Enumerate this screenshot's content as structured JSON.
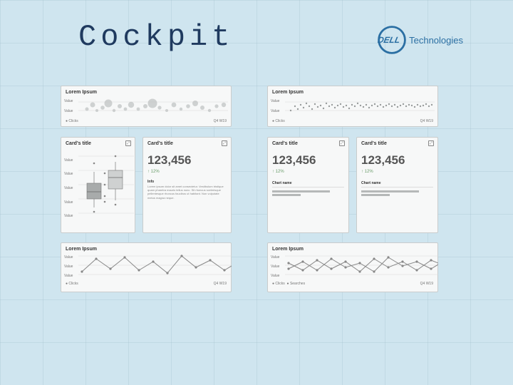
{
  "page": {
    "title": "Cockpit",
    "brand_text": "Technologies",
    "background_color": "#cfe5ef"
  },
  "card_common": {
    "title_label": "Card's title",
    "lorem_title": "Lorem Ipsum",
    "ylabel": "Value",
    "legend_clicks": "● Clicks",
    "legend_searches": "● Searches",
    "x_right": "Q4 W19"
  },
  "bubble1": {
    "type": "bubble",
    "points": [
      [
        12,
        20,
        2.5
      ],
      [
        20,
        14,
        3.5
      ],
      [
        26,
        22,
        2
      ],
      [
        34,
        18,
        2.8
      ],
      [
        42,
        12,
        5.5
      ],
      [
        50,
        22,
        2.2
      ],
      [
        58,
        16,
        3
      ],
      [
        66,
        20,
        2.4
      ],
      [
        74,
        14,
        4.2
      ],
      [
        84,
        20,
        2.4
      ],
      [
        94,
        16,
        3
      ],
      [
        104,
        12,
        6.5
      ],
      [
        114,
        18,
        2.6
      ],
      [
        124,
        22,
        2
      ],
      [
        134,
        14,
        3.4
      ],
      [
        144,
        20,
        2.2
      ],
      [
        154,
        16,
        2.8
      ],
      [
        164,
        12,
        4.0
      ],
      [
        174,
        18,
        3
      ],
      [
        184,
        22,
        2.2
      ],
      [
        194,
        16,
        2.6
      ],
      [
        204,
        14,
        3.2
      ]
    ],
    "fill": "#b8bcbc"
  },
  "bubble2": {
    "type": "scatter",
    "points": [
      [
        8,
        22,
        1.2
      ],
      [
        14,
        16,
        1.2
      ],
      [
        18,
        20,
        1.2
      ],
      [
        22,
        14,
        1.2
      ],
      [
        26,
        18,
        1.2
      ],
      [
        30,
        12,
        1.2
      ],
      [
        34,
        16,
        1.2
      ],
      [
        38,
        20,
        1.2
      ],
      [
        42,
        13,
        1.2
      ],
      [
        46,
        17,
        1.2
      ],
      [
        50,
        15,
        1.2
      ],
      [
        54,
        19,
        1.2
      ],
      [
        58,
        12,
        1.2
      ],
      [
        62,
        16,
        1.2
      ],
      [
        66,
        14,
        1.2
      ],
      [
        70,
        18,
        1.2
      ],
      [
        74,
        15,
        1.2
      ],
      [
        78,
        13,
        1.2
      ],
      [
        82,
        17,
        1.2
      ],
      [
        86,
        15,
        1.2
      ],
      [
        90,
        19,
        1.2
      ],
      [
        94,
        14,
        1.2
      ],
      [
        98,
        16,
        1.2
      ],
      [
        102,
        12,
        1.2
      ],
      [
        106,
        15,
        1.2
      ],
      [
        110,
        17,
        1.2
      ],
      [
        114,
        14,
        1.2
      ],
      [
        118,
        18,
        1.2
      ],
      [
        122,
        15,
        1.2
      ],
      [
        126,
        13,
        1.2
      ],
      [
        130,
        16,
        1.2
      ],
      [
        134,
        14,
        1.2
      ],
      [
        138,
        17,
        1.2
      ],
      [
        142,
        15,
        1.2
      ],
      [
        146,
        13,
        1.2
      ],
      [
        150,
        16,
        1.2
      ],
      [
        154,
        14,
        1.2
      ],
      [
        158,
        17,
        1.2
      ],
      [
        162,
        15,
        1.2
      ],
      [
        166,
        13,
        1.2
      ],
      [
        170,
        16,
        1.2
      ],
      [
        174,
        14,
        1.2
      ],
      [
        178,
        15,
        1.2
      ],
      [
        182,
        17,
        1.2
      ],
      [
        186,
        14,
        1.2
      ],
      [
        190,
        16,
        1.2
      ],
      [
        194,
        15,
        1.2
      ],
      [
        198,
        13,
        1.2
      ],
      [
        202,
        16,
        1.2
      ],
      [
        206,
        14,
        1.2
      ]
    ],
    "fill": "#999c9c"
  },
  "boxplot": {
    "type": "boxplot",
    "boxes": [
      {
        "x": 22,
        "q1": 48,
        "q3": 70,
        "med": 60,
        "wlo": 82,
        "whi": 32,
        "fill": "#a8abab"
      },
      {
        "x": 52,
        "q1": 30,
        "q3": 56,
        "med": 40,
        "wlo": 72,
        "whi": 18,
        "fill": "#cfd1d1"
      }
    ],
    "outliers": [
      [
        22,
        20
      ],
      [
        22,
        88
      ],
      [
        52,
        10
      ],
      [
        52,
        78
      ],
      [
        37,
        50
      ],
      [
        37,
        34
      ],
      [
        37,
        66
      ],
      [
        37,
        74
      ]
    ]
  },
  "kpi": {
    "value": "123,456",
    "delta": "↑ 12%",
    "info_h": "Info",
    "info_text": "Lorem ipsum dolor sit amet consectetur. Vestibulum tristique quam pharetra mauris tellus nunc. Sit rhoncus scelerisque pellentesque rhoncus faucibus ut habitant. Non vulputate metus magna neque.",
    "chart_name": "Chart name"
  },
  "bars_small": {
    "values": [
      0.8,
      0.4
    ]
  },
  "line1": {
    "type": "line",
    "points": [
      [
        5,
        28
      ],
      [
        25,
        10
      ],
      [
        45,
        24
      ],
      [
        65,
        8
      ],
      [
        85,
        26
      ],
      [
        105,
        14
      ],
      [
        125,
        30
      ],
      [
        145,
        6
      ],
      [
        165,
        22
      ],
      [
        185,
        12
      ],
      [
        205,
        26
      ],
      [
        225,
        14
      ]
    ]
  },
  "line2": {
    "type": "line",
    "series": [
      [
        [
          5,
          24
        ],
        [
          25,
          14
        ],
        [
          45,
          26
        ],
        [
          65,
          10
        ],
        [
          85,
          22
        ],
        [
          105,
          16
        ],
        [
          125,
          28
        ],
        [
          145,
          8
        ],
        [
          165,
          20
        ],
        [
          185,
          14
        ],
        [
          205,
          24
        ],
        [
          225,
          12
        ]
      ],
      [
        [
          5,
          16
        ],
        [
          25,
          26
        ],
        [
          45,
          12
        ],
        [
          65,
          24
        ],
        [
          85,
          14
        ],
        [
          105,
          28
        ],
        [
          125,
          10
        ],
        [
          145,
          22
        ],
        [
          165,
          14
        ],
        [
          185,
          26
        ],
        [
          205,
          12
        ],
        [
          225,
          20
        ]
      ]
    ]
  }
}
